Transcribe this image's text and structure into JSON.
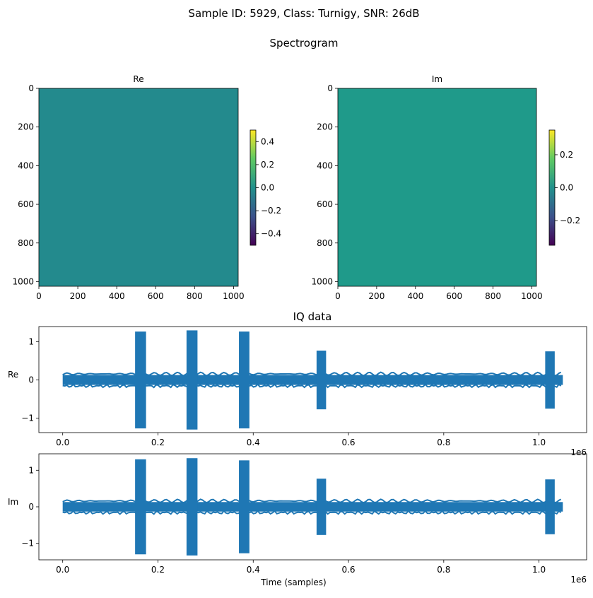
{
  "figure": {
    "suptitle": "Sample ID: 5929, Class: Turnigy, SNR: 26dB",
    "spectrogram_title": "Spectrogram",
    "iq_title": "IQ data"
  },
  "colors": {
    "re_image": "#238a8d",
    "im_image": "#1f9a8a",
    "iq_line": "#1f77b4",
    "viridis": [
      "#440154",
      "#3b528b",
      "#21918c",
      "#5ec962",
      "#fde725"
    ]
  },
  "chart_data": [
    {
      "type": "heatmap",
      "title": "Re",
      "x_ticks": [
        "0",
        "200",
        "400",
        "600",
        "800",
        "1000"
      ],
      "y_ticks": [
        "0",
        "200",
        "400",
        "600",
        "800",
        "1000"
      ],
      "xlim": [
        0,
        1024
      ],
      "ylim": [
        1024,
        0
      ],
      "value": 0.0,
      "colorbar": {
        "min": -0.5,
        "max": 0.5,
        "ticks": [
          "−0.4",
          "−0.2",
          "0.0",
          "0.2",
          "0.4"
        ],
        "tick_values": [
          -0.4,
          -0.2,
          0.0,
          0.2,
          0.4
        ]
      }
    },
    {
      "type": "heatmap",
      "title": "Im",
      "x_ticks": [
        "0",
        "200",
        "400",
        "600",
        "800",
        "1000"
      ],
      "y_ticks": [
        "0",
        "200",
        "400",
        "600",
        "800",
        "1000"
      ],
      "xlim": [
        0,
        1024
      ],
      "ylim": [
        1024,
        0
      ],
      "value": 0.0,
      "colorbar": {
        "min": -0.35,
        "max": 0.35,
        "ticks": [
          "−0.2",
          "0.0",
          "0.2"
        ],
        "tick_values": [
          -0.2,
          0.0,
          0.2
        ]
      }
    },
    {
      "type": "line",
      "ylabel": "Re",
      "xlabel": "",
      "offset_label": "1e6",
      "xlim": [
        -0.05,
        1.1
      ],
      "ylim": [
        -1.38,
        1.4
      ],
      "x_ticks": [
        "0.0",
        "0.2",
        "0.4",
        "0.6",
        "0.8",
        "1.0"
      ],
      "x_tick_values": [
        0.0,
        0.2,
        0.4,
        0.6,
        0.8,
        1.0
      ],
      "y_ticks": [
        "−1",
        "0",
        "1"
      ],
      "y_tick_values": [
        -1,
        0,
        1
      ],
      "noise_band": {
        "x": [
          0.0,
          1.05
        ],
        "y": [
          -0.13,
          0.13
        ]
      },
      "bursts": [
        {
          "x": [
            0.152,
            0.175
          ],
          "y": [
            -1.27,
            1.27
          ]
        },
        {
          "x": [
            0.26,
            0.283
          ],
          "y": [
            -1.3,
            1.3
          ]
        },
        {
          "x": [
            0.37,
            0.392
          ],
          "y": [
            -1.27,
            1.27
          ]
        },
        {
          "x": [
            0.533,
            0.553
          ],
          "y": [
            -0.77,
            0.77
          ]
        },
        {
          "x": [
            1.013,
            1.033
          ],
          "y": [
            -0.75,
            0.75
          ]
        }
      ]
    },
    {
      "type": "line",
      "ylabel": "Im",
      "xlabel": "Time (samples)",
      "offset_label": "1e6",
      "xlim": [
        -0.05,
        1.1
      ],
      "ylim": [
        -1.45,
        1.45
      ],
      "x_ticks": [
        "0.0",
        "0.2",
        "0.4",
        "0.6",
        "0.8",
        "1.0"
      ],
      "x_tick_values": [
        0.0,
        0.2,
        0.4,
        0.6,
        0.8,
        1.0
      ],
      "y_ticks": [
        "−1",
        "0",
        "1"
      ],
      "y_tick_values": [
        -1,
        0,
        1
      ],
      "noise_band": {
        "x": [
          0.0,
          1.05
        ],
        "y": [
          -0.13,
          0.13
        ]
      },
      "bursts": [
        {
          "x": [
            0.152,
            0.175
          ],
          "y": [
            -1.3,
            1.3
          ]
        },
        {
          "x": [
            0.26,
            0.283
          ],
          "y": [
            -1.33,
            1.33
          ]
        },
        {
          "x": [
            0.37,
            0.392
          ],
          "y": [
            -1.27,
            1.27
          ]
        },
        {
          "x": [
            0.533,
            0.553
          ],
          "y": [
            -0.77,
            0.77
          ]
        },
        {
          "x": [
            1.013,
            1.033
          ],
          "y": [
            -0.75,
            0.75
          ]
        }
      ]
    }
  ]
}
